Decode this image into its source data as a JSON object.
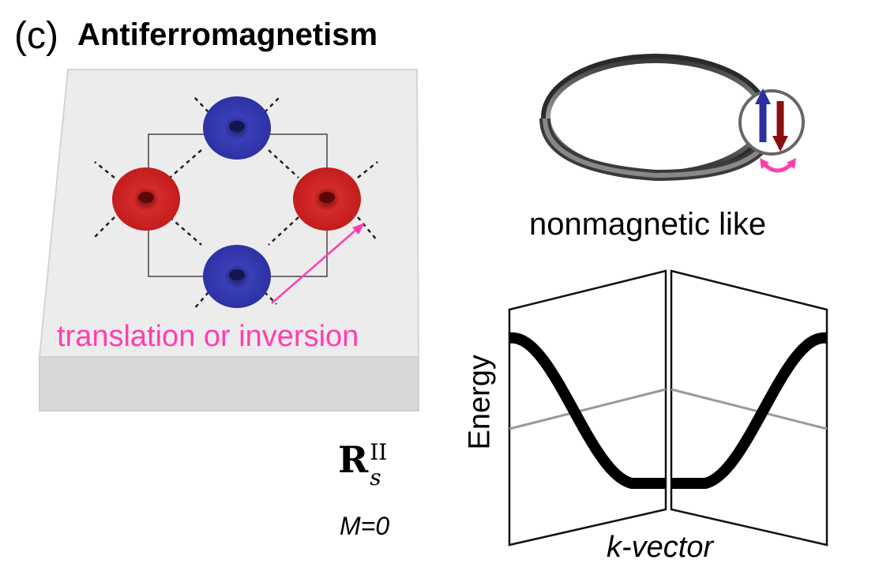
{
  "header": {
    "panel_letter": "(c)",
    "title": "Antiferromagnetism"
  },
  "lattice": {
    "annotation": "translation or inversion",
    "arrow_color": "#ff3fae",
    "site_colors": {
      "spin_a": "#2b2fa0",
      "spin_b": "#c81e1e"
    }
  },
  "ring": {
    "caption": "nonmagnetic like"
  },
  "symmetry": {
    "symbol_main": "R",
    "symbol_sup": "II",
    "symbol_sub": "s",
    "moment": "M=0"
  },
  "band_plot": {
    "ylabel": "Energy",
    "xlabel": "k-vector"
  }
}
